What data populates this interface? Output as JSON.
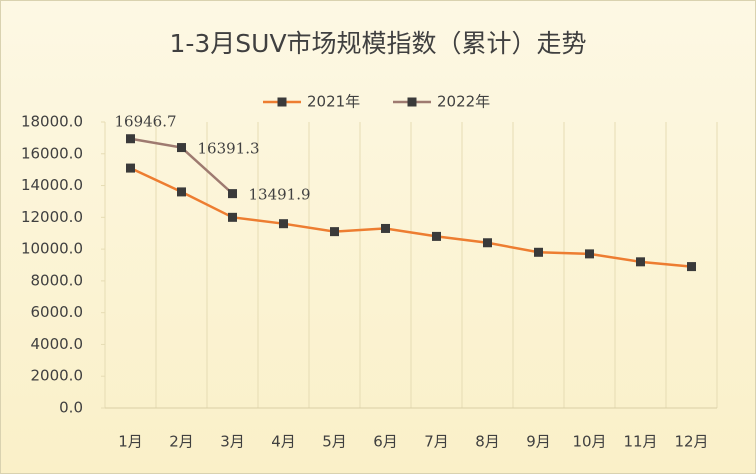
{
  "chart_data": {
    "type": "line",
    "title": "1-3月SUV市场规模指数（累计）走势",
    "categories": [
      "1月",
      "2月",
      "3月",
      "4月",
      "5月",
      "6月",
      "7月",
      "8月",
      "9月",
      "10月",
      "11月",
      "12月"
    ],
    "series": [
      {
        "name": "2021年",
        "color": "#ed7d31",
        "values": [
          15100,
          13600,
          12000,
          11600,
          11100,
          11300,
          10800,
          10400,
          9800,
          9700,
          9200,
          8900
        ]
      },
      {
        "name": "2022年",
        "color": "#9e7a70",
        "values": [
          16946.7,
          16391.3,
          13491.9,
          null,
          null,
          null,
          null,
          null,
          null,
          null,
          null,
          null
        ]
      }
    ],
    "marker_color": "#3a3a3a",
    "ylim": [
      0,
      18000
    ],
    "yticks": [
      {
        "value": 0,
        "label": "0.0"
      },
      {
        "value": 2000,
        "label": "2000.0"
      },
      {
        "value": 4000,
        "label": "4000.0"
      },
      {
        "value": 6000,
        "label": "6000.0"
      },
      {
        "value": 8000,
        "label": "8000.0"
      },
      {
        "value": 10000,
        "label": "10000.0"
      },
      {
        "value": 12000,
        "label": "12000.0"
      },
      {
        "value": 14000,
        "label": "14000.0"
      },
      {
        "value": 16000,
        "label": "16000.0"
      },
      {
        "value": 18000,
        "label": "18000.0"
      }
    ],
    "legend": "top"
  }
}
